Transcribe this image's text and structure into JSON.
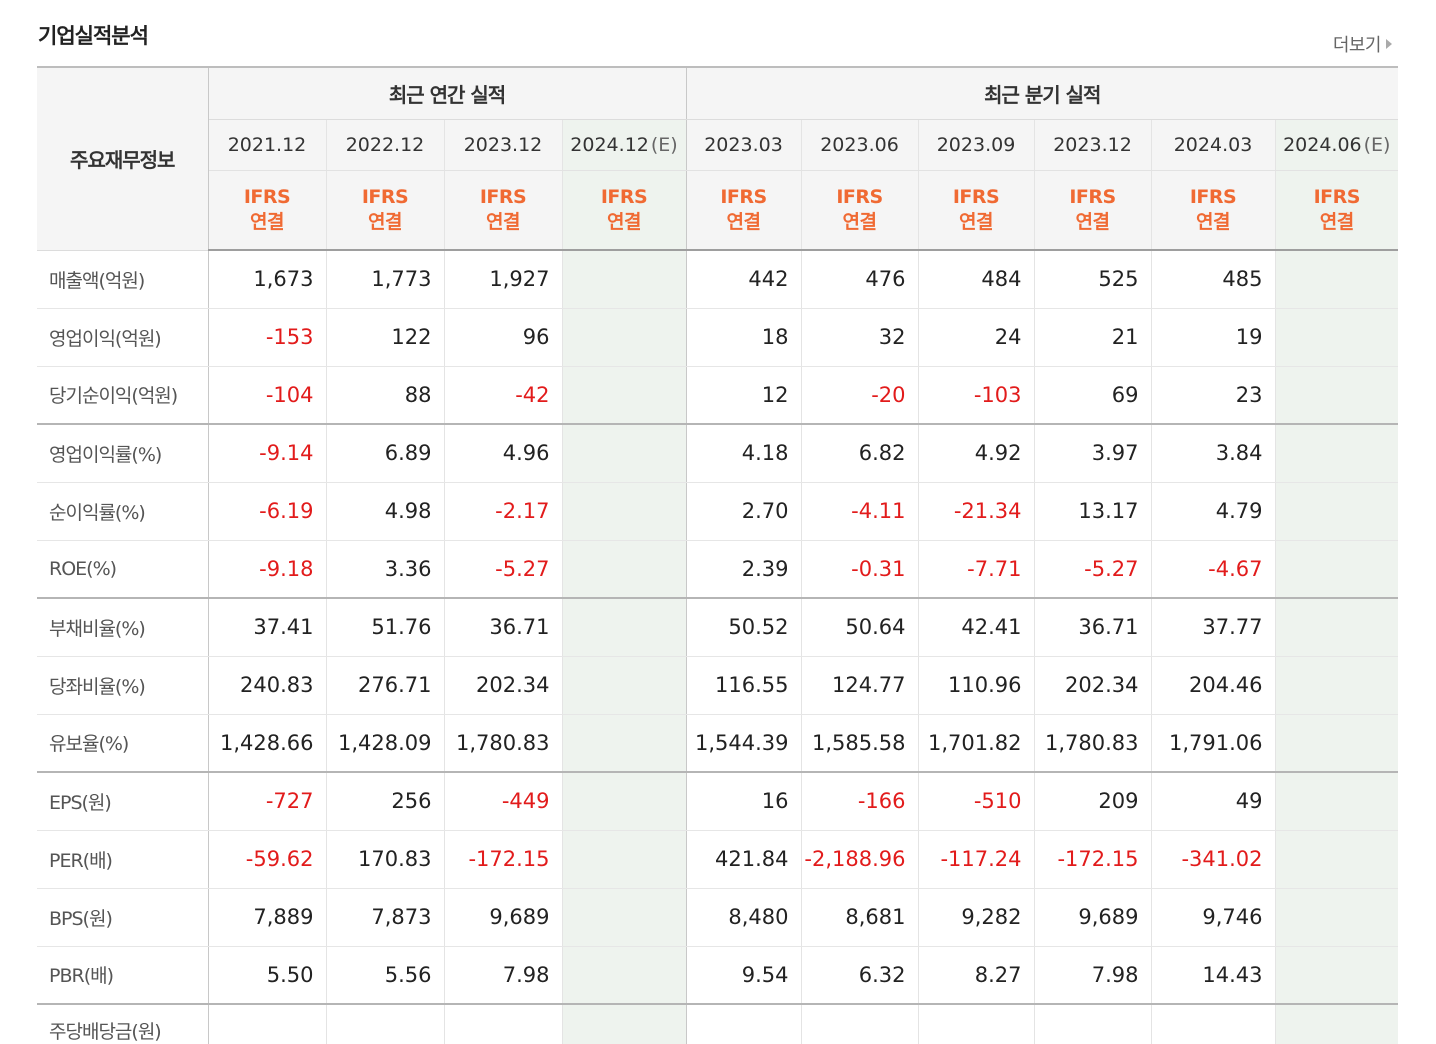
{
  "section": {
    "title": "기업실적분석",
    "more_label": "더보기"
  },
  "table": {
    "corner_label": "주요재무정보",
    "groups": [
      {
        "label": "최근 연간 실적"
      },
      {
        "label": "최근 분기 실적"
      }
    ],
    "periods": [
      {
        "date": "2021.12",
        "estimate": "",
        "std": "IFRS",
        "basis": "연결"
      },
      {
        "date": "2022.12",
        "estimate": "",
        "std": "IFRS",
        "basis": "연결"
      },
      {
        "date": "2023.12",
        "estimate": "",
        "std": "IFRS",
        "basis": "연결"
      },
      {
        "date": "2024.12",
        "estimate": "(E)",
        "std": "IFRS",
        "basis": "연결"
      },
      {
        "date": "2023.03",
        "estimate": "",
        "std": "IFRS",
        "basis": "연결"
      },
      {
        "date": "2023.06",
        "estimate": "",
        "std": "IFRS",
        "basis": "연결"
      },
      {
        "date": "2023.09",
        "estimate": "",
        "std": "IFRS",
        "basis": "연결"
      },
      {
        "date": "2023.12",
        "estimate": "",
        "std": "IFRS",
        "basis": "연결"
      },
      {
        "date": "2024.03",
        "estimate": "",
        "std": "IFRS",
        "basis": "연결"
      },
      {
        "date": "2024.06",
        "estimate": "(E)",
        "std": "IFRS",
        "basis": "연결"
      }
    ],
    "rows": [
      {
        "label": "매출액(억원)",
        "values": [
          "1,673",
          "1,773",
          "1,927",
          "",
          "442",
          "476",
          "484",
          "525",
          "485",
          ""
        ]
      },
      {
        "label": "영업이익(억원)",
        "values": [
          "-153",
          "122",
          "96",
          "",
          "18",
          "32",
          "24",
          "21",
          "19",
          ""
        ]
      },
      {
        "label": "당기순이익(억원)",
        "values": [
          "-104",
          "88",
          "-42",
          "",
          "12",
          "-20",
          "-103",
          "69",
          "23",
          ""
        ]
      },
      {
        "label": "영업이익률(%)",
        "values": [
          "-9.14",
          "6.89",
          "4.96",
          "",
          "4.18",
          "6.82",
          "4.92",
          "3.97",
          "3.84",
          ""
        ]
      },
      {
        "label": "순이익률(%)",
        "values": [
          "-6.19",
          "4.98",
          "-2.17",
          "",
          "2.70",
          "-4.11",
          "-21.34",
          "13.17",
          "4.79",
          ""
        ]
      },
      {
        "label": "ROE(%)",
        "values": [
          "-9.18",
          "3.36",
          "-5.27",
          "",
          "2.39",
          "-0.31",
          "-7.71",
          "-5.27",
          "-4.67",
          ""
        ]
      },
      {
        "label": "부채비율(%)",
        "values": [
          "37.41",
          "51.76",
          "36.71",
          "",
          "50.52",
          "50.64",
          "42.41",
          "36.71",
          "37.77",
          ""
        ]
      },
      {
        "label": "당좌비율(%)",
        "values": [
          "240.83",
          "276.71",
          "202.34",
          "",
          "116.55",
          "124.77",
          "110.96",
          "202.34",
          "204.46",
          ""
        ]
      },
      {
        "label": "유보율(%)",
        "values": [
          "1,428.66",
          "1,428.09",
          "1,780.83",
          "",
          "1,544.39",
          "1,585.58",
          "1,701.82",
          "1,780.83",
          "1,791.06",
          ""
        ]
      },
      {
        "label": "EPS(원)",
        "values": [
          "-727",
          "256",
          "-449",
          "",
          "16",
          "-166",
          "-510",
          "209",
          "49",
          ""
        ]
      },
      {
        "label": "PER(배)",
        "values": [
          "-59.62",
          "170.83",
          "-172.15",
          "",
          "421.84",
          "-2,188.96",
          "-117.24",
          "-172.15",
          "-341.02",
          ""
        ]
      },
      {
        "label": "BPS(원)",
        "values": [
          "7,889",
          "7,873",
          "9,689",
          "",
          "8,480",
          "8,681",
          "9,282",
          "9,689",
          "9,746",
          ""
        ]
      },
      {
        "label": "PBR(배)",
        "values": [
          "5.50",
          "5.56",
          "7.98",
          "",
          "9.54",
          "6.32",
          "8.27",
          "7.98",
          "14.43",
          ""
        ]
      },
      {
        "label": "주당배당금(원)",
        "values": [
          "",
          "",
          "",
          "",
          "",
          "",
          "",
          "",
          "",
          ""
        ]
      }
    ],
    "group_end_rows": [
      2,
      5,
      8,
      12
    ],
    "negative_color": "#e21b1b",
    "basis_color": "#f06a33",
    "estimate_bg": "#eef3ee"
  }
}
